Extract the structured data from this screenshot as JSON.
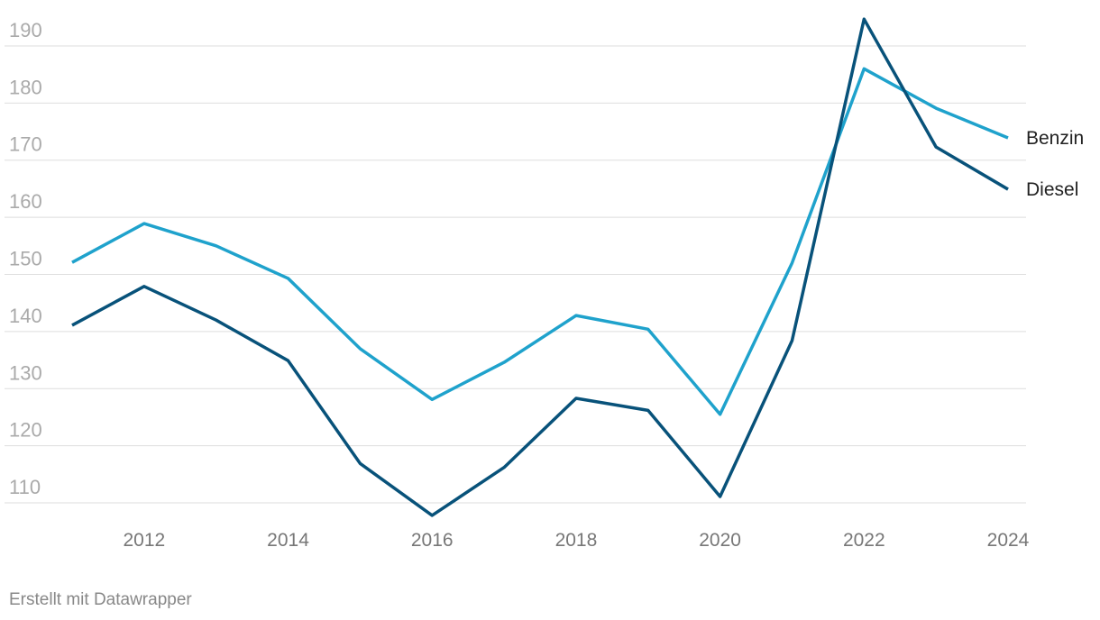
{
  "chart_data": {
    "type": "line",
    "x": [
      2011,
      2012,
      2013,
      2014,
      2015,
      2016,
      2017,
      2018,
      2019,
      2020,
      2021,
      2022,
      2023,
      2024
    ],
    "series": [
      {
        "name": "Benzin",
        "color": "#1fa2cc",
        "values": [
          152.1,
          158.9,
          155.0,
          149.3,
          137.0,
          128.1,
          134.6,
          142.8,
          140.4,
          125.5,
          152.0,
          186.0,
          179.1,
          173.9
        ]
      },
      {
        "name": "Diesel",
        "color": "#08527a",
        "values": [
          141.1,
          147.9,
          142.0,
          134.9,
          116.9,
          107.8,
          116.2,
          128.3,
          126.2,
          111.1,
          138.4,
          194.7,
          172.3,
          164.9
        ]
      }
    ],
    "xlim": [
      2011,
      2024
    ],
    "xticks": [
      2012,
      2014,
      2016,
      2018,
      2020,
      2022,
      2024
    ],
    "ylim": [
      105,
      195
    ],
    "yticks": [
      110,
      120,
      130,
      140,
      150,
      160,
      170,
      180,
      190
    ],
    "grid": true,
    "footer": "Erstellt mit Datawrapper"
  }
}
